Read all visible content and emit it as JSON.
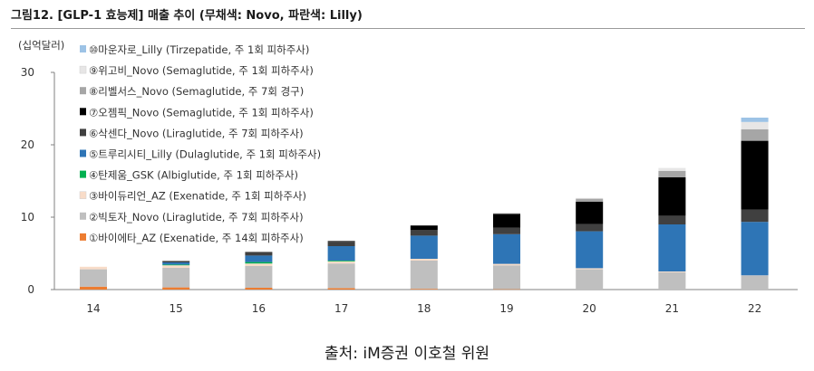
{
  "header": {
    "title": "그림12. [GLP-1 효능제] 매출 추이 (무채색: Novo, 파란색: Lilly)",
    "unit": "(십억달러)"
  },
  "footer": {
    "source": "출처: iM증권 이호철 위원"
  },
  "chart_data": {
    "type": "bar",
    "stacked": true,
    "title": "그림12. [GLP-1 효능제] 매출 추이 (무채색: Novo, 파란색: Lilly)",
    "ylabel": "(십억달러)",
    "xlabel": "",
    "ylim": [
      0,
      30
    ],
    "yticks": [
      "0",
      "10",
      "20",
      "30"
    ],
    "categories": [
      "14",
      "15",
      "16",
      "17",
      "18",
      "19",
      "20",
      "21",
      "22"
    ],
    "legend_position": "top-left",
    "series": [
      {
        "name": "①바이에타_AZ (Exenatide, 주 14회 피하주사)",
        "color": "#ed7d31",
        "values": [
          0.4,
          0.3,
          0.25,
          0.2,
          0.1,
          0.05,
          0,
          0,
          0
        ]
      },
      {
        "name": "②빅토자_Novo (Liraglutide, 주 7회 피하주사)",
        "color": "#bfbfbf",
        "values": [
          2.4,
          2.7,
          3.0,
          3.4,
          3.9,
          3.3,
          2.8,
          2.4,
          1.9
        ]
      },
      {
        "name": "③바이듀리언_AZ (Exenatide, 주 1회 피하주사)",
        "color": "#f8dcc8",
        "values": [
          0.35,
          0.35,
          0.35,
          0.3,
          0.25,
          0.2,
          0.15,
          0.1,
          0.05
        ]
      },
      {
        "name": "④탄제움_GSK (Albiglutide, 주 1회 피하주사)",
        "color": "#00b050",
        "values": [
          0,
          0.1,
          0.2,
          0.1,
          0,
          0,
          0,
          0,
          0
        ]
      },
      {
        "name": "⑤트루리시티_Lilly (Dulaglutide, 주 1회 피하주사)",
        "color": "#2e75b6",
        "values": [
          0,
          0.3,
          0.9,
          2.0,
          3.2,
          4.1,
          5.1,
          6.5,
          7.4
        ]
      },
      {
        "name": "⑥삭센다_Novo (Liraglutide, 주 7회 피하주사)",
        "color": "#404040",
        "values": [
          0,
          0.2,
          0.5,
          0.6,
          0.8,
          0.9,
          1.0,
          1.2,
          1.7
        ]
      },
      {
        "name": "⑦오젬픽_Novo (Semaglutide, 주 1회 피하주사)",
        "color": "#000000",
        "values": [
          0,
          0,
          0,
          0.1,
          0.6,
          1.9,
          3.1,
          5.3,
          9.5
        ]
      },
      {
        "name": "⑧리벨서스_Novo (Semaglutide, 주 7회 경구)",
        "color": "#a6a6a6",
        "values": [
          0,
          0,
          0,
          0,
          0,
          0.1,
          0.4,
          0.9,
          1.6
        ]
      },
      {
        "name": "⑨위고비_Novo (Semaglutide, 주 1회 피하주사)",
        "color": "#e7e6e6",
        "values": [
          0,
          0,
          0,
          0,
          0,
          0,
          0.1,
          0.4,
          1.0
        ]
      },
      {
        "name": "⑩마운자로_Lilly (Tirzepatide, 주 1회 피하주사)",
        "color": "#9dc3e6",
        "values": [
          0,
          0,
          0,
          0,
          0,
          0,
          0,
          0,
          0.6
        ]
      }
    ]
  }
}
